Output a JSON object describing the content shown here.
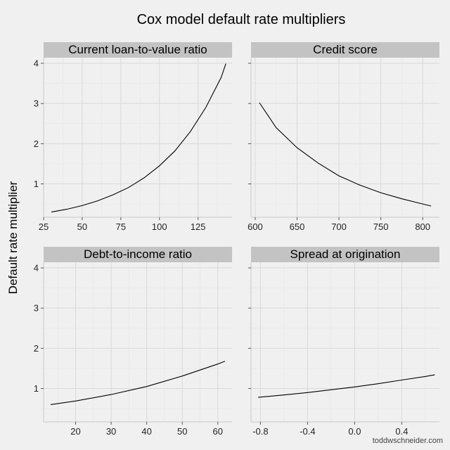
{
  "chart": {
    "title": "Cox model default rate multipliers",
    "ylabel": "Default rate multiplier",
    "credit": "toddwschneider.com"
  },
  "chart_data": {
    "type": "line",
    "facets": true,
    "y_ticks_left_column": [
      "1",
      "2",
      "3",
      "4"
    ],
    "ylim": [
      0.17,
      4.14
    ],
    "panels": [
      {
        "title": "Current loan-to-value ratio",
        "xlim": [
          25,
          147
        ],
        "x_ticks": [
          25,
          50,
          75,
          100,
          125
        ],
        "x_tick_labels": [
          "25",
          "50",
          "75",
          "100",
          "125"
        ],
        "x": [
          30,
          40,
          50,
          60,
          70,
          80,
          90,
          100,
          110,
          120,
          130,
          140,
          143
        ],
        "y": [
          0.3,
          0.37,
          0.46,
          0.58,
          0.73,
          0.91,
          1.15,
          1.45,
          1.82,
          2.3,
          2.9,
          3.65,
          3.99
        ]
      },
      {
        "title": "Credit score",
        "xlim": [
          595,
          820
        ],
        "x_ticks": [
          600,
          650,
          700,
          750,
          800
        ],
        "x_tick_labels": [
          "600",
          "650",
          "700",
          "750",
          "800"
        ],
        "x": [
          605,
          625,
          650,
          675,
          700,
          725,
          750,
          775,
          800,
          810
        ],
        "y": [
          3.02,
          2.4,
          1.9,
          1.52,
          1.2,
          0.97,
          0.78,
          0.63,
          0.5,
          0.45
        ]
      },
      {
        "title": "Debt-to-income ratio",
        "xlim": [
          11,
          64
        ],
        "x_ticks": [
          20,
          30,
          40,
          50,
          60
        ],
        "x_tick_labels": [
          "20",
          "30",
          "40",
          "50",
          "60"
        ],
        "x": [
          13,
          20,
          30,
          40,
          50,
          60,
          62
        ],
        "y": [
          0.6,
          0.69,
          0.85,
          1.05,
          1.31,
          1.61,
          1.68
        ]
      },
      {
        "title": "Spread at origination",
        "xlim": [
          -0.88,
          0.72
        ],
        "x_ticks": [
          -0.8,
          -0.4,
          0.0,
          0.4
        ],
        "x_tick_labels": [
          "-0.8",
          "-0.4",
          "0.0",
          "0.4"
        ],
        "x": [
          -0.82,
          -0.6,
          -0.4,
          -0.2,
          0.0,
          0.2,
          0.4,
          0.6,
          0.68
        ],
        "y": [
          0.78,
          0.84,
          0.9,
          0.97,
          1.04,
          1.12,
          1.21,
          1.3,
          1.34
        ]
      }
    ]
  }
}
